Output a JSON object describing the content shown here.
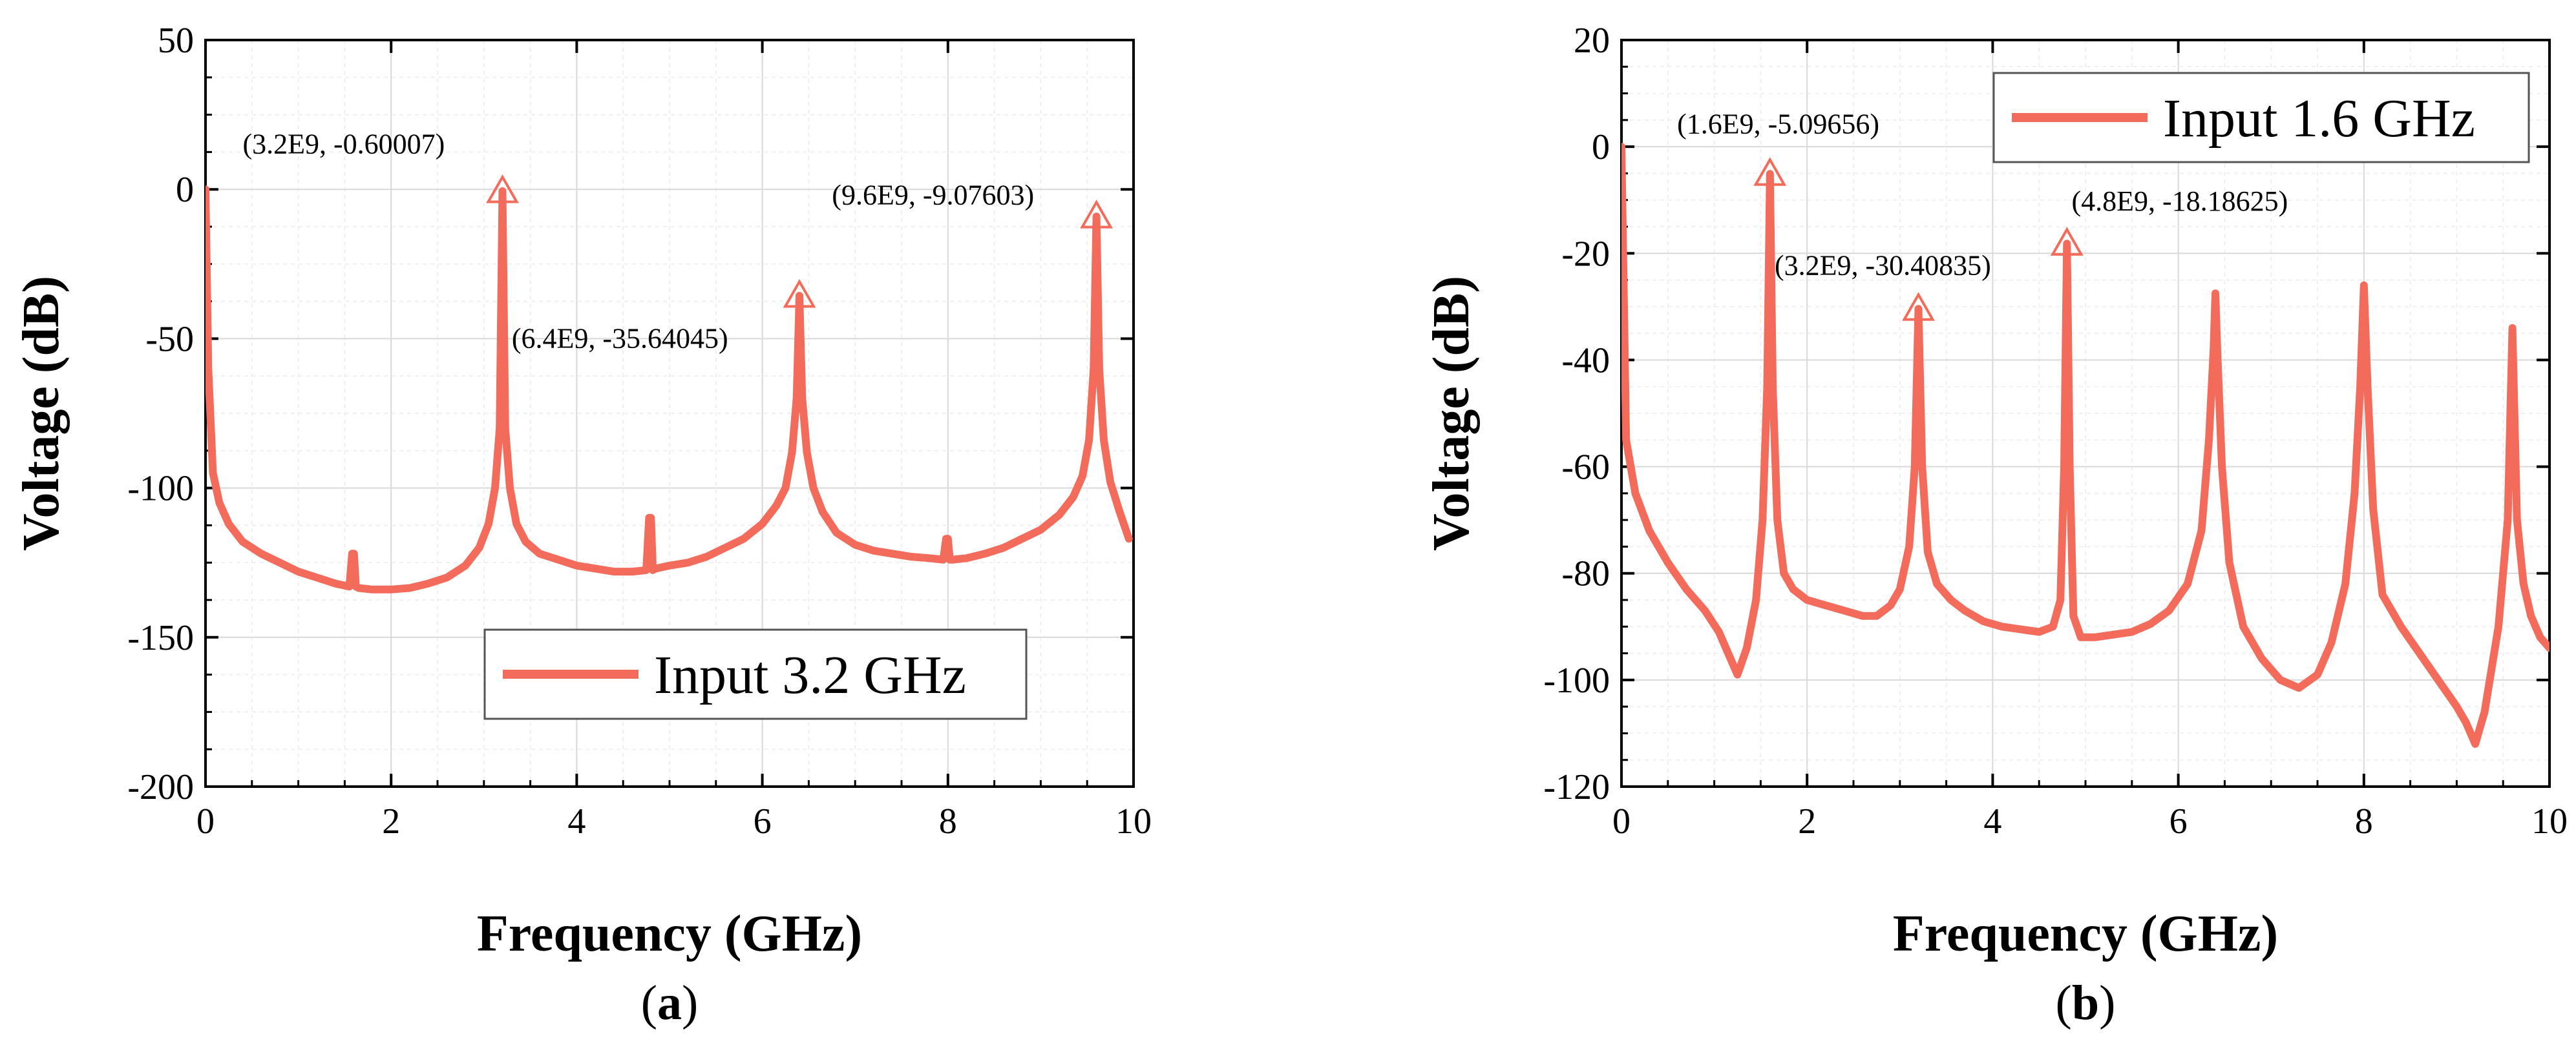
{
  "chart_data": [
    {
      "type": "line",
      "panel_label_prefix": "(",
      "panel_label_letter": "a",
      "panel_label_suffix": ")",
      "xlabel": "Frequency (GHz)",
      "ylabel": "Voltage (dB)",
      "xlim": [
        0,
        10
      ],
      "ylim": [
        -200,
        50
      ],
      "xticks": [
        0,
        2,
        4,
        6,
        8,
        10
      ],
      "yticks": [
        -200,
        -150,
        -100,
        -50,
        0,
        50
      ],
      "xminor_step": 0.5,
      "yminor_step": 12.5,
      "grid": true,
      "legend_position": "lower-center",
      "color": "#f26b5b",
      "series": [
        {
          "name": "Input 3.2 GHz",
          "x": [
            0.0,
            0.03,
            0.08,
            0.15,
            0.25,
            0.4,
            0.6,
            0.8,
            1.0,
            1.2,
            1.4,
            1.55,
            1.58,
            1.6,
            1.62,
            1.65,
            1.8,
            2.0,
            2.2,
            2.4,
            2.6,
            2.8,
            2.95,
            3.05,
            3.12,
            3.17,
            3.2,
            3.23,
            3.28,
            3.35,
            3.45,
            3.6,
            3.8,
            4.0,
            4.2,
            4.4,
            4.6,
            4.75,
            4.78,
            4.8,
            4.82,
            4.85,
            5.0,
            5.2,
            5.4,
            5.6,
            5.8,
            6.0,
            6.15,
            6.25,
            6.32,
            6.37,
            6.4,
            6.43,
            6.48,
            6.55,
            6.65,
            6.8,
            7.0,
            7.2,
            7.4,
            7.6,
            7.8,
            7.95,
            7.98,
            8.0,
            8.02,
            8.05,
            8.2,
            8.4,
            8.6,
            8.8,
            9.0,
            9.2,
            9.35,
            9.45,
            9.52,
            9.57,
            9.6,
            9.63,
            9.68,
            9.75,
            9.85,
            9.95
          ],
          "values": [
            0,
            -60,
            -95,
            -105,
            -112,
            -118,
            -122,
            -125,
            -128,
            -130,
            -132,
            -133,
            -122,
            -122,
            -133,
            -133.5,
            -134,
            -134,
            -133.5,
            -132,
            -130,
            -126,
            -120,
            -112,
            -100,
            -80,
            -0.6,
            -80,
            -100,
            -112,
            -118,
            -122,
            -124,
            -126,
            -127,
            -128,
            -128,
            -127.5,
            -110,
            -110,
            -127.5,
            -127,
            -126,
            -125,
            -123,
            -120,
            -117,
            -112,
            -106,
            -100,
            -88,
            -70,
            -35.64,
            -70,
            -88,
            -100,
            -108,
            -115,
            -119,
            -121,
            -122,
            -123,
            -123.5,
            -124,
            -117,
            -117,
            -124,
            -124,
            -123.5,
            -122,
            -120,
            -117,
            -114,
            -109,
            -103,
            -96,
            -84,
            -60,
            -9.08,
            -60,
            -84,
            -98,
            -108,
            -117
          ]
        }
      ],
      "annotations": [
        {
          "text": "(3.2E9, -0.60007)",
          "x": 3.2,
          "y": -0.6,
          "label_x": 0.4,
          "label_y": 12
        },
        {
          "text": "(6.4E9, -35.64045)",
          "x": 6.4,
          "y": -35.64,
          "label_x": 3.3,
          "label_y": -53
        },
        {
          "text": "(9.6E9, -9.07603)",
          "x": 9.6,
          "y": -9.08,
          "label_x": 6.75,
          "label_y": -5
        }
      ]
    },
    {
      "type": "line",
      "panel_label_prefix": "(",
      "panel_label_letter": "b",
      "panel_label_suffix": ")",
      "xlabel": "Frequency (GHz)",
      "ylabel": "Voltage (dB)",
      "xlim": [
        0,
        10
      ],
      "ylim": [
        -120,
        20
      ],
      "xticks": [
        0,
        2,
        4,
        6,
        8,
        10
      ],
      "yticks": [
        -120,
        -100,
        -80,
        -60,
        -40,
        -20,
        0,
        20
      ],
      "xminor_step": 0.5,
      "yminor_step": 5,
      "grid": true,
      "legend_position": "top-right",
      "color": "#f26b5b",
      "series": [
        {
          "name": "Input 1.6 GHz",
          "x": [
            0.0,
            0.05,
            0.15,
            0.3,
            0.5,
            0.7,
            0.9,
            1.05,
            1.15,
            1.25,
            1.35,
            1.45,
            1.52,
            1.57,
            1.6,
            1.63,
            1.68,
            1.75,
            1.85,
            2.0,
            2.2,
            2.4,
            2.6,
            2.75,
            2.9,
            3.0,
            3.1,
            3.16,
            3.2,
            3.24,
            3.3,
            3.4,
            3.55,
            3.7,
            3.9,
            4.1,
            4.3,
            4.5,
            4.65,
            4.73,
            4.77,
            4.8,
            4.83,
            4.87,
            4.95,
            5.1,
            5.3,
            5.5,
            5.7,
            5.9,
            6.1,
            6.25,
            6.33,
            6.38,
            6.4,
            6.42,
            6.47,
            6.55,
            6.7,
            6.9,
            7.1,
            7.3,
            7.5,
            7.65,
            7.8,
            7.9,
            7.96,
            8.0,
            8.04,
            8.1,
            8.2,
            8.4,
            8.6,
            8.8,
            9.0,
            9.1,
            9.2,
            9.3,
            9.45,
            9.55,
            9.6,
            9.65,
            9.72,
            9.8,
            9.9,
            10.0
          ],
          "values": [
            0,
            -55,
            -65,
            -72,
            -78,
            -83,
            -87,
            -91,
            -95,
            -99,
            -94,
            -85,
            -70,
            -45,
            -5.1,
            -45,
            -70,
            -80,
            -83,
            -85,
            -86,
            -87,
            -88,
            -88,
            -86,
            -83,
            -75,
            -60,
            -30.41,
            -60,
            -76,
            -82,
            -85,
            -87,
            -89,
            -90,
            -90.5,
            -91,
            -90,
            -85,
            -60,
            -18.19,
            -60,
            -88,
            -92,
            -92,
            -91.5,
            -91,
            -89.5,
            -87,
            -82,
            -72,
            -55,
            -38,
            -27.5,
            -38,
            -60,
            -78,
            -90,
            -96,
            -100,
            -101.5,
            -99,
            -93,
            -82,
            -65,
            -45,
            -26,
            -45,
            -68,
            -84,
            -90,
            -95,
            -100,
            -105,
            -108,
            -112,
            -106,
            -90,
            -70,
            -34,
            -70,
            -82,
            -88,
            -92,
            -94
          ]
        }
      ],
      "annotations": [
        {
          "text": "(1.6E9, -5.09656)",
          "x": 1.6,
          "y": -5.1,
          "label_x": 0.6,
          "label_y": 2.5
        },
        {
          "text": "(3.2E9, -30.40835)",
          "x": 3.2,
          "y": -30.41,
          "label_x": 1.65,
          "label_y": -24
        },
        {
          "text": "(4.8E9, -18.18625)",
          "x": 4.8,
          "y": -18.19,
          "label_x": 4.85,
          "label_y": -12
        }
      ]
    }
  ]
}
